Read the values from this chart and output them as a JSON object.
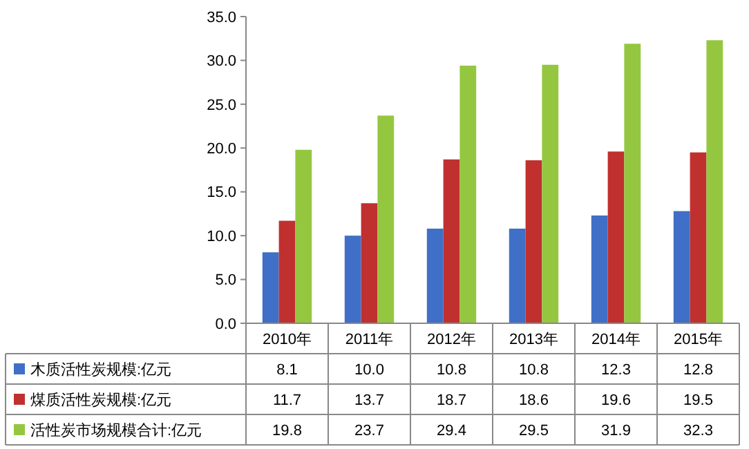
{
  "chart_data": {
    "type": "bar",
    "categories": [
      "2010年",
      "2011年",
      "2012年",
      "2013年",
      "2014年",
      "2015年"
    ],
    "series": [
      {
        "name": "木质活性炭规模:亿元",
        "color": "#3f6fc6",
        "values": [
          8.1,
          10.0,
          10.8,
          10.8,
          12.3,
          12.8
        ],
        "value_labels": [
          "8.1",
          "10.0",
          "10.8",
          "10.8",
          "12.3",
          "12.8"
        ]
      },
      {
        "name": "煤质活性炭规模:亿元",
        "color": "#c0302f",
        "values": [
          11.7,
          13.7,
          18.7,
          18.6,
          19.6,
          19.5
        ],
        "value_labels": [
          "11.7",
          "13.7",
          "18.7",
          "18.6",
          "19.6",
          "19.5"
        ]
      },
      {
        "name": "活性炭市场规模合计:亿元",
        "color": "#94c73f",
        "values": [
          19.8,
          23.7,
          29.4,
          29.5,
          31.9,
          32.3
        ],
        "value_labels": [
          "19.8",
          "23.7",
          "29.4",
          "29.5",
          "31.9",
          "32.3"
        ]
      }
    ],
    "ylim": [
      0,
      35
    ],
    "yticks": [
      {
        "value": 0,
        "label": "0.0"
      },
      {
        "value": 5,
        "label": "5.0"
      },
      {
        "value": 10,
        "label": "10.0"
      },
      {
        "value": 15,
        "label": "15.0"
      },
      {
        "value": 20,
        "label": "20.0"
      },
      {
        "value": 25,
        "label": "25.0"
      },
      {
        "value": 30,
        "label": "30.0"
      },
      {
        "value": 35,
        "label": "35.0"
      }
    ],
    "legend": "bottom",
    "grid": false
  }
}
